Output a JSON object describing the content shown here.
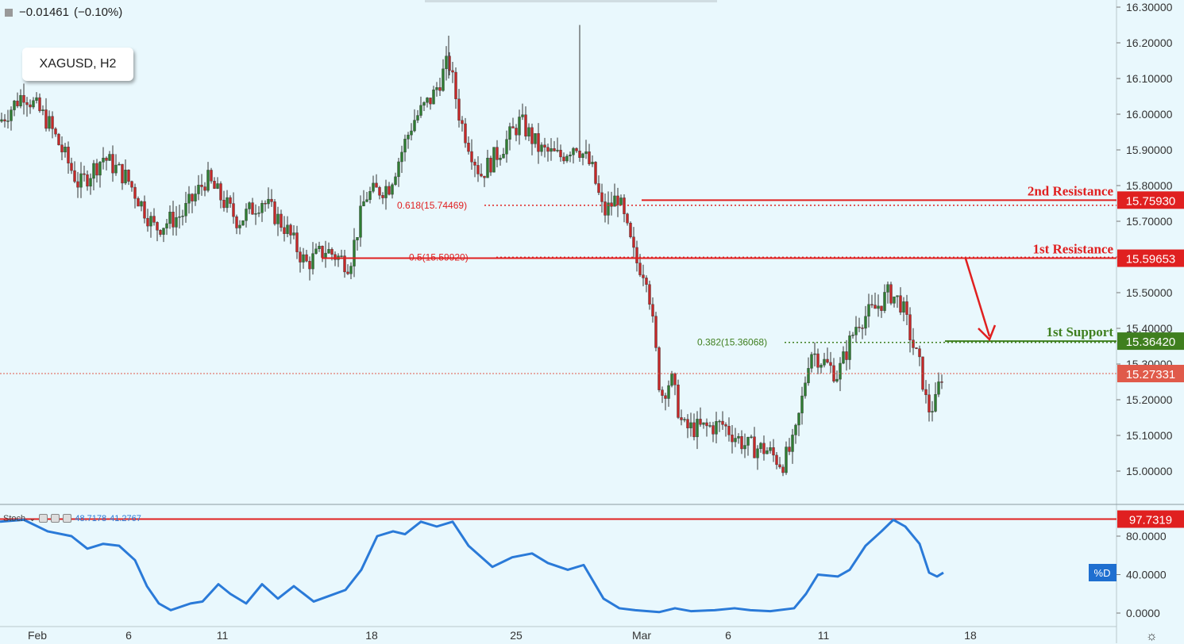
{
  "header": {
    "change_text": "−0.01461",
    "change_pct": "(−0.10%)"
  },
  "symbol": "XAGUSD, H2",
  "stoch": {
    "label": "Stoch",
    "k_value": "48.7178",
    "d_value": "41.2767",
    "d_tag": "%D"
  },
  "colors": {
    "background": "#e9f8fd",
    "candle_up": "#2e7d32",
    "candle_down": "#c62828",
    "resistance": "#e02020",
    "support": "#3f7f1f",
    "stoch_line": "#2a7ad8",
    "current_price": "#e05a4a"
  },
  "chart_data": {
    "type": "candlestick",
    "symbol": "XAGUSD",
    "timeframe": "H2",
    "ylim": [
      14.93,
      16.32
    ],
    "y_ticks": [
      "16.30000",
      "16.20000",
      "16.10000",
      "16.00000",
      "15.90000",
      "15.80000",
      "15.70000",
      "15.60000",
      "15.50000",
      "15.40000",
      "15.30000",
      "15.20000",
      "15.10000",
      "15.00000"
    ],
    "x_ticks": [
      "Feb",
      "6",
      "11",
      "18",
      "25",
      "Mar",
      "6",
      "11",
      "18"
    ],
    "close_path": [
      [
        0,
        15.98
      ],
      [
        30,
        16.06
      ],
      [
        60,
        15.98
      ],
      [
        100,
        15.8
      ],
      [
        130,
        15.88
      ],
      [
        160,
        15.82
      ],
      [
        195,
        15.68
      ],
      [
        230,
        15.72
      ],
      [
        260,
        15.82
      ],
      [
        300,
        15.7
      ],
      [
        330,
        15.76
      ],
      [
        360,
        15.68
      ],
      [
        385,
        15.58
      ],
      [
        410,
        15.62
      ],
      [
        440,
        15.58
      ],
      [
        460,
        15.77
      ],
      [
        490,
        15.8
      ],
      [
        520,
        15.98
      ],
      [
        545,
        16.05
      ],
      [
        565,
        16.15
      ],
      [
        580,
        15.98
      ],
      [
        605,
        15.83
      ],
      [
        630,
        15.9
      ],
      [
        655,
        15.98
      ],
      [
        680,
        15.9
      ],
      [
        705,
        15.88
      ],
      [
        725,
        15.92
      ],
      [
        745,
        15.85
      ],
      [
        760,
        15.72
      ],
      [
        778,
        15.77
      ],
      [
        790,
        15.67
      ],
      [
        800,
        15.59
      ],
      [
        815,
        15.55
      ],
      [
        825,
        15.35
      ],
      [
        832,
        15.21
      ],
      [
        845,
        15.26
      ],
      [
        860,
        15.12
      ],
      [
        885,
        15.12
      ],
      [
        910,
        15.13
      ],
      [
        940,
        15.07
      ],
      [
        965,
        15.06
      ],
      [
        985,
        15.02
      ],
      [
        1000,
        15.08
      ],
      [
        1010,
        15.2
      ],
      [
        1020,
        15.34
      ],
      [
        1040,
        15.3
      ],
      [
        1055,
        15.27
      ],
      [
        1065,
        15.33
      ],
      [
        1080,
        15.42
      ],
      [
        1100,
        15.45
      ],
      [
        1120,
        15.5
      ],
      [
        1135,
        15.47
      ],
      [
        1150,
        15.35
      ],
      [
        1160,
        15.28
      ],
      [
        1168,
        15.17
      ],
      [
        1178,
        15.19
      ],
      [
        1185,
        15.27
      ]
    ],
    "levels": [
      {
        "label": "2nd Resistance",
        "price_text": "15.75930",
        "value": 15.7593,
        "type": "resistance"
      },
      {
        "label": "1st Resistance",
        "price_text": "15.59653",
        "value": 15.59653,
        "type": "resistance"
      },
      {
        "label": "1st Support",
        "price_text": "15.36420",
        "value": 15.3642,
        "type": "support"
      }
    ],
    "current_price": {
      "price_text": "15.27331",
      "value": 15.27331
    },
    "fib_levels": [
      {
        "label": "0.618(15.74469)",
        "value": 15.74469
      },
      {
        "label": "0.5(15.59920)",
        "value": 15.5992
      },
      {
        "label": "0.382(15.36068)",
        "value": 15.36068
      }
    ],
    "stochastic": {
      "ylim": [
        -5,
        110
      ],
      "y_ticks": [
        "80.0000",
        "40.0000",
        "0.0000"
      ],
      "level": {
        "price_text": "97.7319",
        "value": 97.7319
      },
      "d_line": [
        [
          0,
          95
        ],
        [
          30,
          97
        ],
        [
          60,
          85
        ],
        [
          90,
          80
        ],
        [
          110,
          67
        ],
        [
          130,
          72
        ],
        [
          150,
          70
        ],
        [
          170,
          55
        ],
        [
          185,
          28
        ],
        [
          200,
          10
        ],
        [
          215,
          3
        ],
        [
          240,
          10
        ],
        [
          255,
          12
        ],
        [
          275,
          30
        ],
        [
          290,
          20
        ],
        [
          310,
          10
        ],
        [
          330,
          30
        ],
        [
          350,
          15
        ],
        [
          370,
          28
        ],
        [
          395,
          12
        ],
        [
          415,
          18
        ],
        [
          435,
          24
        ],
        [
          455,
          45
        ],
        [
          475,
          80
        ],
        [
          495,
          85
        ],
        [
          510,
          82
        ],
        [
          530,
          95
        ],
        [
          550,
          90
        ],
        [
          570,
          95
        ],
        [
          590,
          70
        ],
        [
          620,
          48
        ],
        [
          645,
          58
        ],
        [
          670,
          62
        ],
        [
          690,
          52
        ],
        [
          715,
          45
        ],
        [
          735,
          50
        ],
        [
          760,
          15
        ],
        [
          780,
          5
        ],
        [
          800,
          3
        ],
        [
          830,
          1
        ],
        [
          850,
          5
        ],
        [
          870,
          2
        ],
        [
          900,
          3
        ],
        [
          925,
          5
        ],
        [
          945,
          3
        ],
        [
          970,
          2
        ],
        [
          1000,
          5
        ],
        [
          1015,
          20
        ],
        [
          1030,
          40
        ],
        [
          1055,
          38
        ],
        [
          1070,
          45
        ],
        [
          1090,
          70
        ],
        [
          1110,
          85
        ],
        [
          1125,
          97
        ],
        [
          1140,
          90
        ],
        [
          1158,
          72
        ],
        [
          1170,
          42
        ],
        [
          1180,
          38
        ],
        [
          1188,
          42
        ]
      ]
    }
  }
}
